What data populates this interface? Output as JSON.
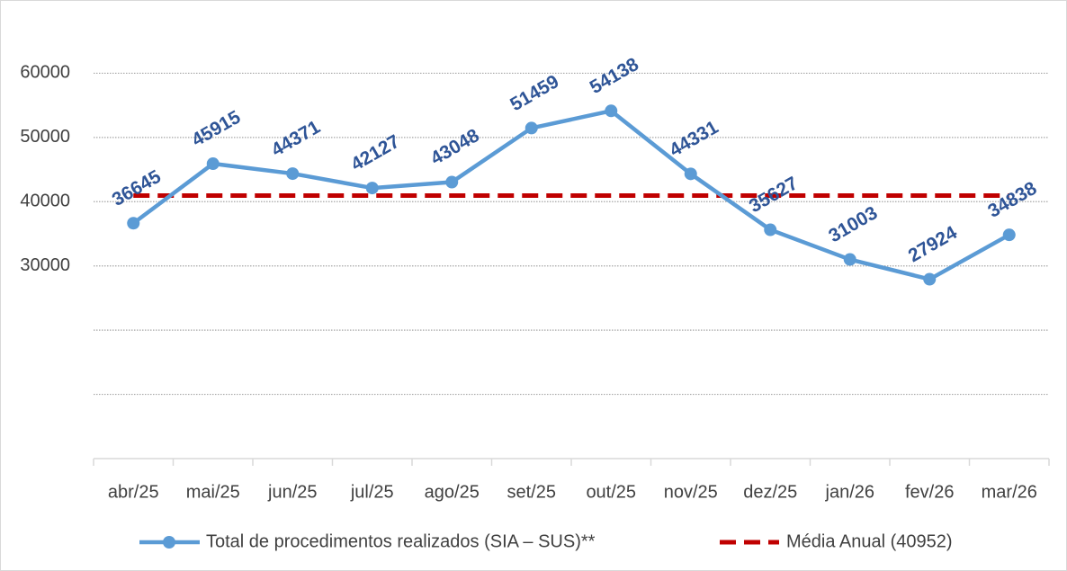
{
  "chart_data": {
    "type": "line",
    "categories": [
      "abr/25",
      "mai/25",
      "jun/25",
      "jul/25",
      "ago/25",
      "set/25",
      "out/25",
      "nov/25",
      "dez/25",
      "jan/26",
      "fev/26",
      "mar/26"
    ],
    "series": [
      {
        "name": "Total de procedimentos realizados (SIA – SUS)**",
        "color": "#5b9bd5",
        "values": [
          36645,
          45915,
          44371,
          42127,
          43048,
          51459,
          54138,
          44331,
          35627,
          31003,
          27924,
          34838
        ]
      }
    ],
    "reference_line": {
      "name": "Média Anual (40952)",
      "value": 40952,
      "color": "#c00000"
    },
    "ylim": [
      0,
      70000
    ],
    "yticks": [
      30000,
      40000,
      50000,
      60000
    ],
    "minor_yticks": [
      10000,
      20000
    ],
    "grid": true,
    "legend": "bottom"
  }
}
